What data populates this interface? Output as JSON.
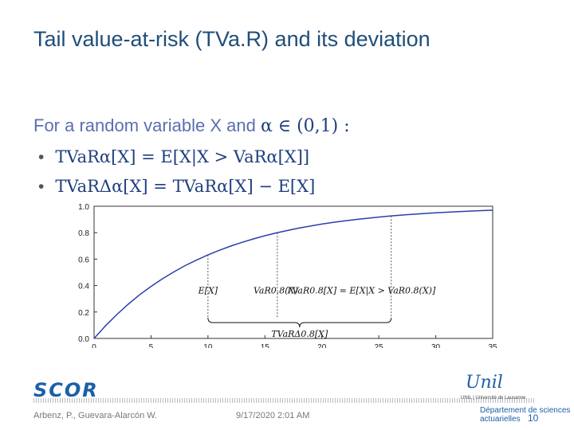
{
  "title": "Tail value-at-risk (TVa.R) and its deviation",
  "intro_text": "For a random variable X and",
  "intro_math": "α ∈ (0,1) :",
  "bullets": [
    "TVaRα[X] = E[X|X > VaRα[X]]",
    "TVaRΔα[X] = TVaRα[X] − E[X]"
  ],
  "chart_data": {
    "type": "line",
    "x": [
      0,
      1,
      2,
      3,
      4,
      5,
      6,
      7,
      8,
      9,
      10,
      11,
      12,
      13,
      14,
      15,
      16,
      17,
      18,
      19,
      20,
      21,
      22,
      23,
      24,
      25,
      26,
      27,
      28,
      29,
      30,
      31,
      32,
      33,
      34,
      35
    ],
    "y": [
      0,
      0.095,
      0.181,
      0.259,
      0.33,
      0.393,
      0.451,
      0.503,
      0.551,
      0.593,
      0.632,
      0.667,
      0.699,
      0.727,
      0.753,
      0.777,
      0.798,
      0.817,
      0.835,
      0.85,
      0.865,
      0.878,
      0.889,
      0.9,
      0.909,
      0.918,
      0.926,
      0.933,
      0.939,
      0.945,
      0.95,
      0.955,
      0.959,
      0.963,
      0.967,
      0.97
    ],
    "xlim": [
      0,
      35
    ],
    "ylim": [
      0,
      1.0
    ],
    "xticks": [
      "0",
      "5",
      "10",
      "15",
      "20",
      "25",
      "30",
      "35"
    ],
    "yticks": [
      "0.0",
      "0.2",
      "0.4",
      "0.6",
      "0.8",
      "1.0"
    ],
    "vlines": [
      10,
      16.09,
      26.09
    ],
    "annotations": [
      {
        "text": "E[X]",
        "x": 10
      },
      {
        "text": "VaR0.8(X)",
        "x": 16.09
      },
      {
        "text": "TVaR0.8[X] = E[X|X > VaR0.8(X)]",
        "x": 26.09
      }
    ],
    "brace_label": "TVaRΔ0.8[X]",
    "brace_from": 10,
    "brace_to": 26.09,
    "line_color": "#2b3fa8"
  },
  "footer": {
    "logo": "SCOR",
    "author": "Arbenz, P., Guevara-Alarcón W.",
    "date": "9/17/2020 2:01 AM",
    "page": "10",
    "unil_logo": "Unil",
    "unil_sub": "UNIL | Université de Lausanne",
    "dept": "Département de sciences actuarielles"
  }
}
